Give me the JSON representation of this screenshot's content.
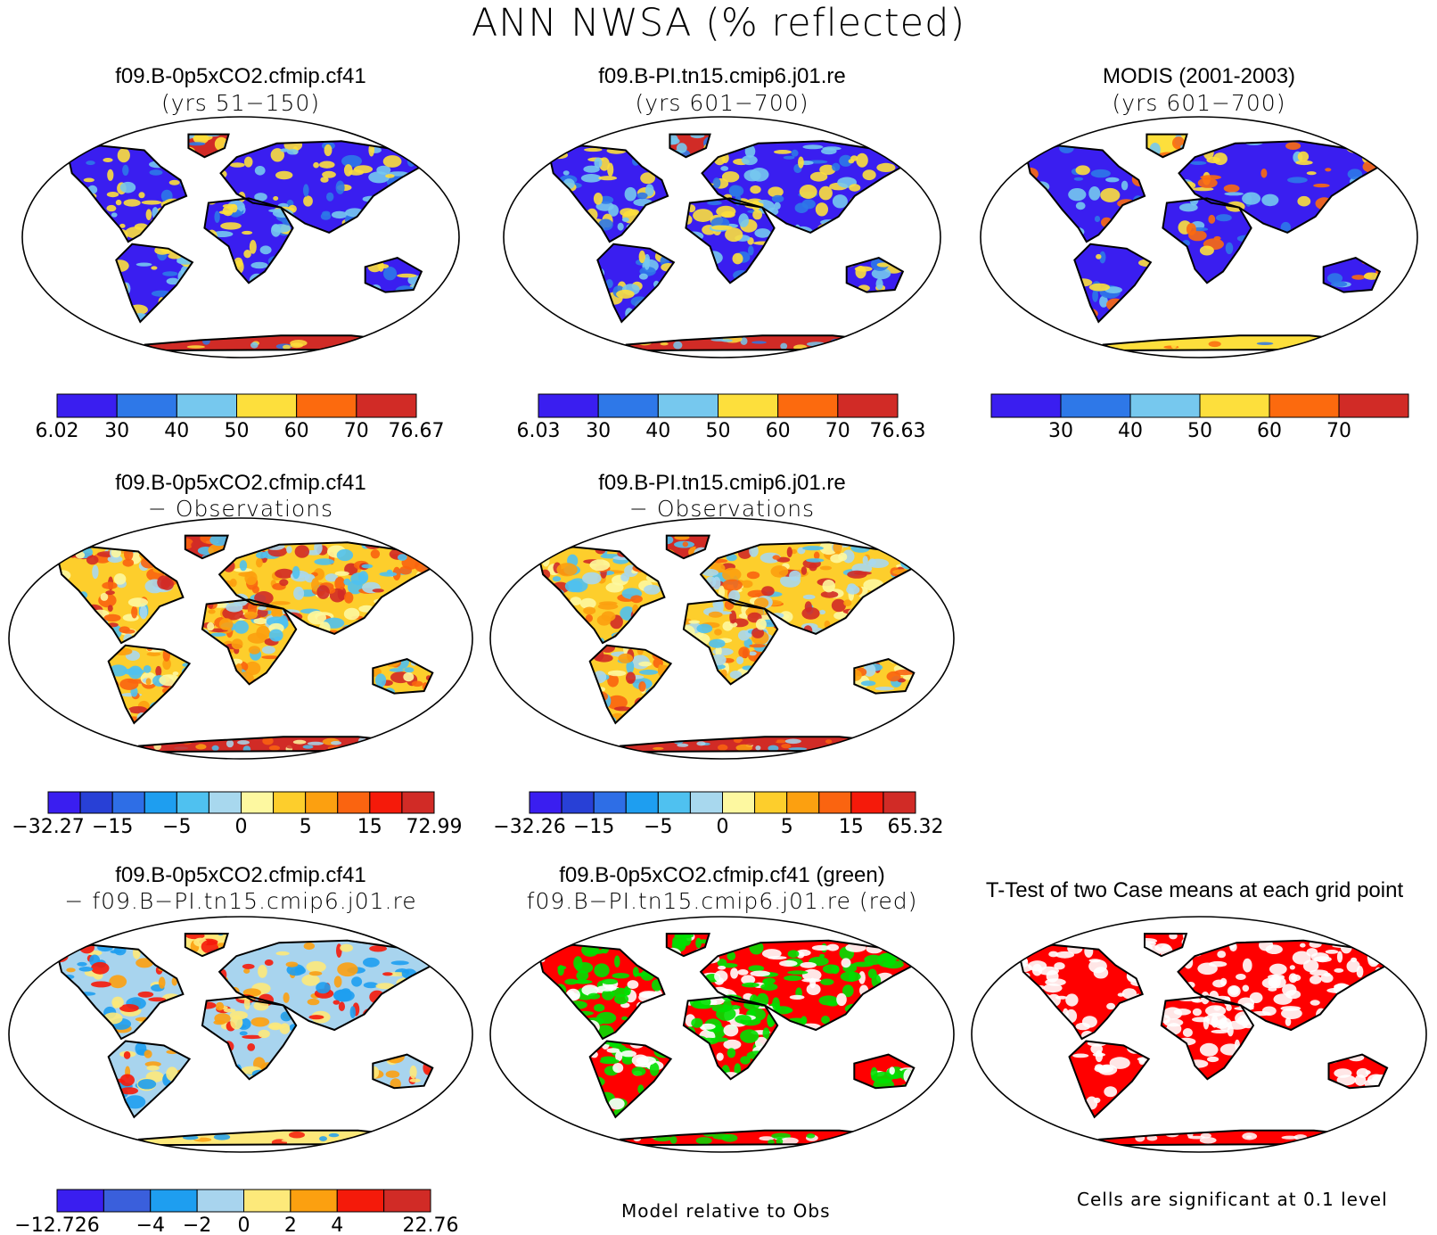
{
  "page": {
    "title": "ANN NWSA (% reflected)",
    "footer_middle": "Model relative to Obs",
    "footer_right": "Cells are significant at 0.1 level"
  },
  "panels": [
    {
      "id": "p1",
      "title": "f09.B-0p5xCO2.cfmip.cf41",
      "subtitle": "(yrs 51−150)",
      "map_style": "albedo",
      "colorbar": "cb1"
    },
    {
      "id": "p2",
      "title": "f09.B-PI.tn15.cmip6.j01.re",
      "subtitle": "(yrs 601−700)",
      "map_style": "albedo",
      "colorbar": "cb2"
    },
    {
      "id": "p3",
      "title": "MODIS (2001-2003)",
      "subtitle": "(yrs 601−700)",
      "map_style": "albedo-obs",
      "colorbar": "cb3"
    },
    {
      "id": "p4",
      "title": "f09.B-0p5xCO2.cfmip.cf41",
      "subtitle": "− Observations",
      "map_style": "bias",
      "colorbar": "cb4"
    },
    {
      "id": "p5",
      "title": "f09.B-PI.tn15.cmip6.j01.re",
      "subtitle": "− Observations",
      "map_style": "bias",
      "colorbar": "cb5"
    },
    {
      "id": "p6",
      "title": "f09.B-0p5xCO2.cfmip.cf41",
      "subtitle": "− f09.B−PI.tn15.cmip6.j01.re",
      "map_style": "difference",
      "colorbar": "cb6"
    },
    {
      "id": "p7",
      "title": "f09.B-0p5xCO2.cfmip.cf41 (green)",
      "subtitle": "f09.B−PI.tn15.cmip6.j01.re (red)",
      "map_style": "comparison",
      "colorbar": null
    },
    {
      "id": "p8",
      "title": "T-Test of two Case means at each grid point",
      "subtitle": "",
      "map_style": "ttest",
      "colorbar": null
    }
  ],
  "colors": {
    "land_outline": "#000000",
    "red_sig": "#ff0000",
    "green_case": "#00e000"
  },
  "colorbars": {
    "cb1": {
      "colors": [
        "#3a1ef0",
        "#2e78e8",
        "#76c8ee",
        "#fddf3c",
        "#fc6a0e",
        "#d12b26"
      ],
      "labels": [
        "6.02",
        "30",
        "40",
        "50",
        "60",
        "70",
        "76.67"
      ]
    },
    "cb2": {
      "colors": [
        "#3a1ef0",
        "#2e78e8",
        "#76c8ee",
        "#fddf3c",
        "#fc6a0e",
        "#d12b26"
      ],
      "labels": [
        "6.03",
        "30",
        "40",
        "50",
        "60",
        "70",
        "76.63"
      ]
    },
    "cb3": {
      "colors": [
        "#3a1ef0",
        "#2e78e8",
        "#76c8ee",
        "#fddf3c",
        "#fc6a0e",
        "#d12b26"
      ],
      "labels": [
        "",
        "30",
        "40",
        "50",
        "60",
        "70",
        ""
      ]
    },
    "cb4": {
      "colors": [
        "#3a1ef0",
        "#2840d6",
        "#2e6ee6",
        "#1e9ef0",
        "#4fc1f0",
        "#a8d8ee",
        "#fdf8a0",
        "#fdce2c",
        "#fca010",
        "#fa6410",
        "#f51a0a",
        "#d12b26"
      ],
      "labels": [
        "−32.27",
        "−15",
        "−5",
        "0",
        "5",
        "15",
        "72.99"
      ],
      "label_edges": [
        0,
        2,
        4,
        6,
        8,
        10,
        12
      ]
    },
    "cb5": {
      "colors": [
        "#3a1ef0",
        "#2840d6",
        "#2e6ee6",
        "#1e9ef0",
        "#4fc1f0",
        "#a8d8ee",
        "#fdf8a0",
        "#fdce2c",
        "#fca010",
        "#fa6410",
        "#f51a0a",
        "#d12b26"
      ],
      "labels": [
        "−32.26",
        "−15",
        "−5",
        "0",
        "5",
        "15",
        "65.32"
      ],
      "label_edges": [
        0,
        2,
        4,
        6,
        8,
        10,
        12
      ]
    },
    "cb6": {
      "colors": [
        "#3a1ef0",
        "#3a5fdc",
        "#1e9ef0",
        "#a8d4ee",
        "#fde97a",
        "#fca010",
        "#f51a0a",
        "#d12b26"
      ],
      "labels": [
        "−12.726",
        "−4",
        "−2",
        "0",
        "2",
        "4",
        "22.76"
      ],
      "label_edges": [
        0,
        2,
        3,
        4,
        5,
        6,
        8
      ]
    }
  },
  "chart_data": [
    {
      "type": "heatmap",
      "title": "f09.B-0p5xCO2.cfmip.cf41",
      "subtitle": "(yrs 51−150)",
      "colorbar_levels": [
        6.02,
        30,
        40,
        50,
        60,
        70,
        76.67
      ]
    },
    {
      "type": "heatmap",
      "title": "f09.B-PI.tn15.cmip6.j01.re",
      "subtitle": "(yrs 601−700)",
      "colorbar_levels": [
        6.03,
        30,
        40,
        50,
        60,
        70,
        76.63
      ]
    },
    {
      "type": "heatmap",
      "title": "MODIS (2001-2003)",
      "subtitle": "(yrs 601−700)",
      "colorbar_levels": [
        30,
        40,
        50,
        60,
        70
      ]
    },
    {
      "type": "heatmap",
      "title": "f09.B-0p5xCO2.cfmip.cf41",
      "subtitle": "− Observations",
      "colorbar_levels": [
        -32.27,
        -15,
        -5,
        0,
        5,
        15,
        72.99
      ]
    },
    {
      "type": "heatmap",
      "title": "f09.B-PI.tn15.cmip6.j01.re",
      "subtitle": "− Observations",
      "colorbar_levels": [
        -32.26,
        -15,
        -5,
        0,
        5,
        15,
        65.32
      ]
    },
    {
      "type": "heatmap",
      "title": "f09.B-0p5xCO2.cfmip.cf41",
      "subtitle": "− f09.B−PI.tn15.cmip6.j01.re",
      "colorbar_levels": [
        -12.726,
        -4,
        -2,
        0,
        2,
        4,
        22.76
      ]
    },
    {
      "type": "heatmap",
      "title": "f09.B-0p5xCO2.cfmip.cf41 (green)",
      "subtitle": "f09.B−PI.tn15.cmip6.j01.re (red)"
    },
    {
      "type": "heatmap",
      "title": "T-Test of two Case means at each grid point"
    }
  ]
}
